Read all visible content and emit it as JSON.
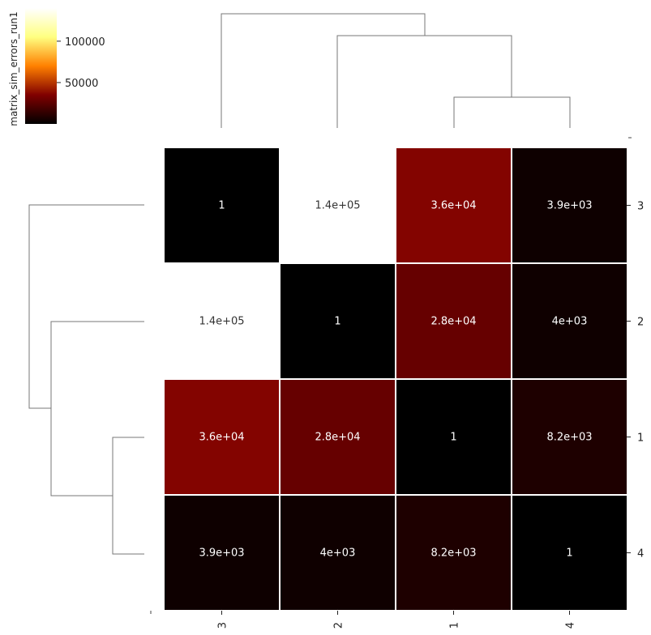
{
  "chart_data": {
    "type": "heatmap",
    "colorbar_label": "matrix_sim_errors_run1",
    "colorbar_ticks": [
      50000,
      100000
    ],
    "colorbar_tick_labels": [
      "50000",
      "100000"
    ],
    "colorbar_range": [
      1,
      140000
    ],
    "colormap": "afmhot",
    "columns": [
      "3",
      "2",
      "1",
      "4"
    ],
    "rows": [
      "3",
      "2",
      "1",
      "4"
    ],
    "values": [
      [
        1,
        140000,
        36000,
        3900
      ],
      [
        140000,
        1,
        28000,
        4000
      ],
      [
        36000,
        28000,
        1,
        8200
      ],
      [
        3900,
        4000,
        8200,
        1
      ]
    ],
    "cell_labels": [
      [
        "1",
        "1.4e+05",
        "3.6e+04",
        "3.9e+03"
      ],
      [
        "1.4e+05",
        "1",
        "2.8e+04",
        "4e+03"
      ],
      [
        "3.6e+04",
        "2.8e+04",
        "1",
        "8.2e+03"
      ],
      [
        "3.9e+03",
        "4e+03",
        "8.2e+03",
        "1"
      ]
    ],
    "dendrograms": [
      "top",
      "left"
    ]
  }
}
